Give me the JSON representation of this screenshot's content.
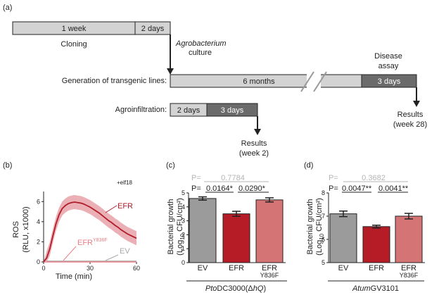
{
  "panel_a": {
    "label": "(a)",
    "timeline": {
      "bar1_seg1": "1 week",
      "bar1_seg2": "2 days",
      "cloning": "Cloning",
      "agro_line1": "Agrobacterium",
      "agro_line2": "culture",
      "transgenic_label": "Generation of transgenic lines:",
      "transgenic_seg1": "6 months",
      "transgenic_seg2": "3 days",
      "disease_line1": "Disease",
      "disease_line2": "assay",
      "results_late_line1": "Results",
      "results_late_line2": "(week 28)",
      "agroinf_label": "Agroinfiltration:",
      "agroinf_seg1": "2 days",
      "agroinf_seg2": "3 days",
      "results_early_line1": "Results",
      "results_early_line2": "(week 2)"
    }
  },
  "panel_b": {
    "label": "(b)",
    "treatment": "+elf18",
    "ylabel_line1": "ROS",
    "ylabel_line2": "(RLU, x1000)",
    "xlabel": "Time (min)",
    "legend_efr": "EFR",
    "legend_mut_base": "EFR",
    "legend_mut_sup": "Y836F",
    "legend_ev": "EV",
    "colors": {
      "efr": "#b01c2a",
      "efr_band": "#e8a2a8",
      "mut": "#e88088",
      "ev": "#a8a8a8"
    }
  },
  "panel_c": {
    "label": "(c)",
    "p_gray_label": "P=",
    "p_gray_value": "0.7784",
    "p_black_label": "P=",
    "p_value_1": "0.0164",
    "p_star_1": "*",
    "p_value_2": "0.0290",
    "p_star_2": "*",
    "ylabel_line1": "Bacterial growth",
    "ylabel_line2": "(Log",
    "ylabel_sub": "10",
    "ylabel_line2_end": " CFU/cm²)",
    "bar_label_1": "EV",
    "bar_label_2": "EFR",
    "bar_label_3_line1": "EFR",
    "bar_label_3_line2": "Y836F",
    "strain_prefix": "Pto",
    "strain_mid": "DC3000(",
    "strain_delta": "Δ",
    "strain_hq": "hQ",
    "strain_end": ")"
  },
  "panel_d": {
    "label": "(d)",
    "p_gray_label": "P=",
    "p_gray_value": "0.3682",
    "p_black_label": "P=",
    "p_value_1": "0.0047",
    "p_star_1": "**",
    "p_value_2": "0.0041",
    "p_star_2": "**",
    "ylabel_line1": "Bacterial growth",
    "ylabel_line2": "(Log",
    "ylabel_sub": "10",
    "ylabel_line2_end": " CFU/cm²)",
    "bar_label_1": "EV",
    "bar_label_2": "EFR",
    "bar_label_3_line1": "EFR",
    "bar_label_3_line2": "Y836F",
    "strain_prefix": "Atum",
    "strain_rest": "GV3101"
  },
  "chart_data": [
    {
      "type": "line",
      "panel": "b",
      "xlabel": "Time (min)",
      "ylabel": "ROS (RLU, x1000)",
      "xlim": [
        0,
        60
      ],
      "ylim": [
        0,
        7
      ],
      "xticks": [
        0,
        30,
        60
      ],
      "yticks": [
        0,
        2,
        4,
        6
      ],
      "series": [
        {
          "name": "EFR",
          "color": "#b01c2a",
          "x": [
            0,
            2,
            4,
            6,
            8,
            10,
            12,
            14,
            16,
            18,
            20,
            22,
            24,
            26,
            28,
            30,
            32,
            34,
            36,
            38,
            40,
            42,
            44,
            46,
            48,
            50,
            52,
            54,
            56,
            58,
            60
          ],
          "y": [
            0,
            0.4,
            1.3,
            2.6,
            3.8,
            4.7,
            5.3,
            5.6,
            5.8,
            5.9,
            5.95,
            5.9,
            5.85,
            5.75,
            5.6,
            5.45,
            5.25,
            5.05,
            4.85,
            4.6,
            4.35,
            4.1,
            3.9,
            3.65,
            3.45,
            3.2,
            3.0,
            2.8,
            2.65,
            2.5,
            2.35
          ],
          "err": 0.7
        },
        {
          "name": "EFRY836F",
          "color": "#e88088",
          "x": [
            0,
            10,
            20,
            30,
            40,
            50,
            60
          ],
          "y": [
            0,
            0,
            0,
            0,
            0,
            0,
            0
          ]
        },
        {
          "name": "EV",
          "color": "#a8a8a8",
          "x": [
            0,
            10,
            20,
            30,
            40,
            50,
            60
          ],
          "y": [
            0,
            0,
            0,
            0,
            0,
            0,
            0
          ]
        }
      ]
    },
    {
      "type": "bar",
      "panel": "c",
      "categories": [
        "EV",
        "EFR",
        "EFR Y836F"
      ],
      "values": [
        4.6,
        3.5,
        4.5
      ],
      "errors": [
        0.12,
        0.18,
        0.15
      ],
      "colors": [
        "#9b9b9b",
        "#b51c26",
        "#d57474"
      ],
      "ylim": [
        0,
        5
      ],
      "yticks": [
        0,
        1,
        2,
        3,
        4,
        5
      ]
    },
    {
      "type": "bar",
      "panel": "d",
      "categories": [
        "EV",
        "EFR",
        "EFR Y836F"
      ],
      "values": [
        7.1,
        6.55,
        7.0
      ],
      "errors": [
        0.12,
        0.06,
        0.12
      ],
      "colors": [
        "#9b9b9b",
        "#b51c26",
        "#d57474"
      ],
      "ylim": [
        5,
        8
      ],
      "yticks": [
        5,
        6,
        7,
        8
      ]
    }
  ]
}
